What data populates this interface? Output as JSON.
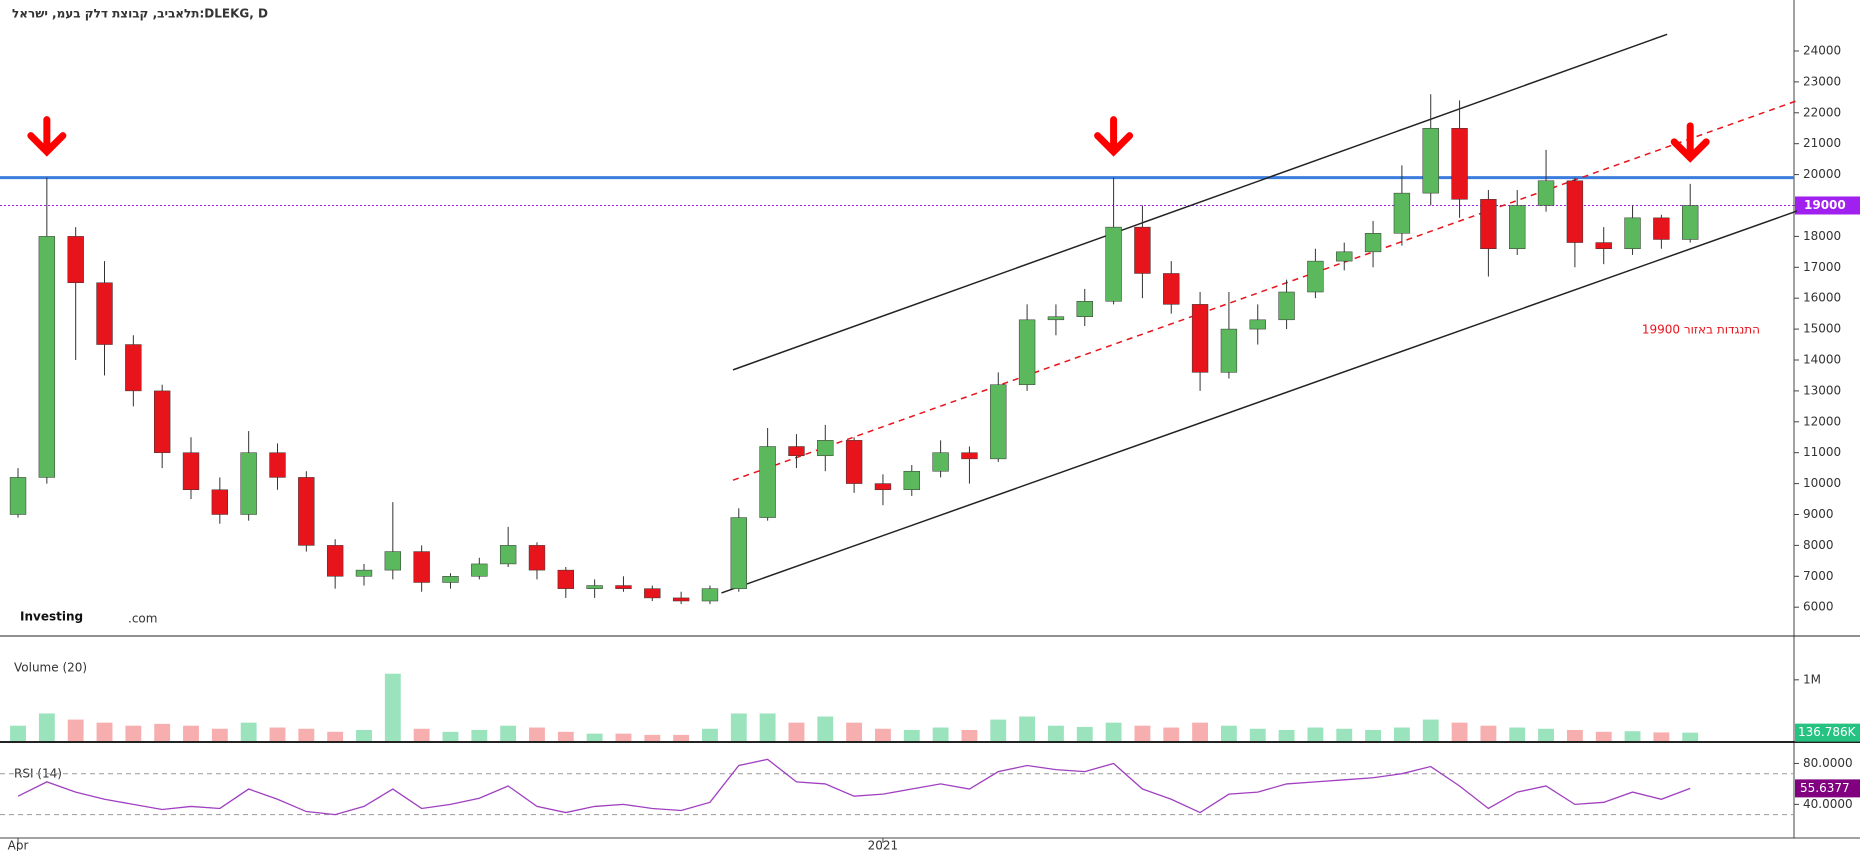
{
  "chart_data": [
    {
      "type": "candlestick",
      "title": "תלאביב, קבוצת דלק בעמ, ישראל:DLEKG, D",
      "open": [
        9000,
        10200,
        18000,
        16500,
        14500,
        13000,
        11000,
        9800,
        9000,
        11000,
        10200,
        8000,
        7000,
        7200,
        7800,
        6800,
        7000,
        7400,
        8000,
        7200,
        6600,
        6700,
        6600,
        6300,
        6200,
        6600,
        8900,
        11200,
        10900,
        11400,
        10000,
        9800,
        10400,
        11000,
        10800,
        13200,
        15300,
        15400,
        15900,
        18300,
        16800,
        15800,
        13600,
        15000,
        15300,
        16200,
        17200,
        17500,
        18100,
        19400,
        21500,
        19200,
        17600,
        19000,
        19800,
        17800,
        17600,
        18600,
        17900
      ],
      "high": [
        10500,
        19900,
        18300,
        17200,
        14800,
        13200,
        11500,
        10200,
        11700,
        11300,
        10400,
        8200,
        7400,
        9400,
        8000,
        7100,
        7600,
        8600,
        8100,
        7300,
        6900,
        7000,
        6700,
        6500,
        6700,
        9200,
        11800,
        11600,
        11900,
        11500,
        10300,
        10600,
        11400,
        11200,
        13600,
        15800,
        15800,
        16300,
        19900,
        19000,
        17200,
        16200,
        16200,
        15800,
        16600,
        17600,
        17800,
        18500,
        20300,
        22600,
        22400,
        19500,
        19500,
        20800,
        19900,
        18300,
        19000,
        18700,
        19700
      ],
      "low": [
        8900,
        10000,
        14000,
        13500,
        12500,
        10500,
        9500,
        8700,
        8800,
        9800,
        7800,
        6600,
        6700,
        6900,
        6500,
        6600,
        6900,
        7300,
        6900,
        6300,
        6300,
        6500,
        6200,
        6100,
        6100,
        6500,
        8800,
        10500,
        10400,
        9700,
        9300,
        9600,
        10200,
        10000,
        10700,
        13000,
        14800,
        15100,
        15800,
        16000,
        15500,
        13000,
        13400,
        14500,
        15000,
        16000,
        16900,
        17000,
        17700,
        19000,
        18600,
        16700,
        17400,
        18800,
        17000,
        17100,
        17400,
        17600,
        17800
      ],
      "close": [
        10200,
        18000,
        16500,
        14500,
        13000,
        11000,
        9800,
        9000,
        11000,
        10200,
        8000,
        7000,
        7200,
        7800,
        6800,
        7000,
        7400,
        8000,
        7200,
        6600,
        6700,
        6600,
        6300,
        6200,
        6600,
        8900,
        11200,
        10900,
        11400,
        10000,
        9800,
        10400,
        11000,
        10800,
        13200,
        15300,
        15400,
        15900,
        18300,
        16800,
        15800,
        13600,
        15000,
        15300,
        16200,
        17200,
        17500,
        18100,
        19400,
        21500,
        19200,
        17600,
        19000,
        19800,
        17800,
        17600,
        18600,
        17900,
        19000
      ],
      "up_color": "#5cb85c",
      "down_color": "#e8141b",
      "xlim": [
        -0.625,
        61.6
      ],
      "xticks": [
        {
          "value": 0,
          "label": "Apr"
        },
        {
          "value": 30,
          "label": "2021"
        }
      ],
      "ylim": [
        5100,
        25650
      ],
      "yticks": [
        6000,
        7000,
        8000,
        9000,
        10000,
        11000,
        12000,
        13000,
        14000,
        15000,
        16000,
        17000,
        18000,
        19000,
        20000,
        21000,
        22000,
        23000,
        24000
      ],
      "hlines": [
        {
          "value": 19900,
          "color": "#3b7ddd"
        }
      ],
      "last_price_color": "#a020f0",
      "channel": [
        {
          "x": [
            24.8,
            57.2
          ],
          "y": [
            13680,
            24540
          ],
          "color": "#222222",
          "dash": false
        },
        {
          "x": [
            24.4,
            61.7
          ],
          "y": [
            6460,
            18820
          ],
          "color": "#222222",
          "dash": false
        },
        {
          "x": [
            24.8,
            61.7
          ],
          "y": [
            10110,
            22390
          ],
          "color": "#e8141b",
          "dash": true
        }
      ],
      "annotation": "התנגדות באזור 19900",
      "arrows_at": [
        1,
        38,
        58
      ],
      "logo": {
        "brand": "Investing",
        "suffix": ".com"
      }
    },
    {
      "type": "bar",
      "title": "Volume (20)",
      "values": [
        250000,
        450000,
        350000,
        300000,
        250000,
        280000,
        250000,
        200000,
        300000,
        220000,
        200000,
        150000,
        180000,
        1100000,
        200000,
        150000,
        180000,
        250000,
        220000,
        150000,
        120000,
        120000,
        100000,
        100000,
        200000,
        450000,
        450000,
        300000,
        400000,
        300000,
        200000,
        180000,
        220000,
        180000,
        350000,
        400000,
        250000,
        230000,
        300000,
        250000,
        220000,
        300000,
        250000,
        200000,
        180000,
        220000,
        200000,
        180000,
        220000,
        350000,
        300000,
        250000,
        220000,
        200000,
        180000,
        150000,
        160000,
        140000,
        136786
      ],
      "last_value_label": "136.786K",
      "last_color": "#26c281",
      "ylim": [
        0,
        1700000
      ],
      "yticks": [
        {
          "value": 1000000,
          "label": "1M"
        }
      ]
    },
    {
      "type": "line",
      "title": "RSI (14)",
      "color": "#a040c0",
      "values": [
        48,
        62,
        52,
        45,
        40,
        35,
        38,
        36,
        55,
        45,
        33,
        30,
        38,
        55,
        36,
        40,
        46,
        58,
        38,
        32,
        38,
        40,
        36,
        34,
        42,
        78,
        84,
        62,
        60,
        48,
        50,
        55,
        60,
        55,
        72,
        78,
        74,
        72,
        80,
        55,
        45,
        32,
        50,
        52,
        60,
        62,
        64,
        66,
        70,
        77,
        58,
        36,
        52,
        58,
        40,
        42,
        52,
        45,
        55.6377
      ],
      "ylim": [
        13,
        100
      ],
      "levels": [
        70,
        30
      ],
      "yticks": [
        {
          "value": 80,
          "label": "80.0000"
        },
        {
          "value": 40,
          "label": "40.0000"
        }
      ]
    }
  ]
}
